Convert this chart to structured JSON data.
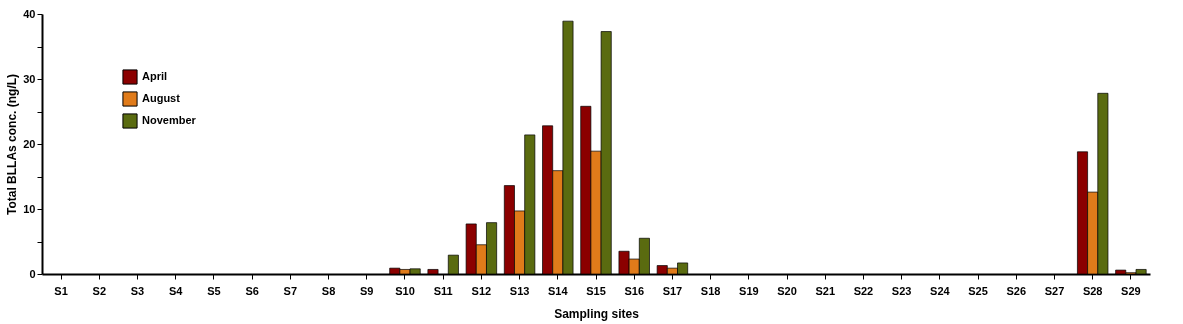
{
  "chart_data": {
    "type": "bar",
    "xlabel": "Sampling sites",
    "ylabel": "Total  BLLAs  conc.  (ng/L)",
    "categories": [
      "S1",
      "S2",
      "S3",
      "S4",
      "S5",
      "S6",
      "S7",
      "S8",
      "S9",
      "S10",
      "S11",
      "S12",
      "S13",
      "S14",
      "S15",
      "S16",
      "S17",
      "S18",
      "S19",
      "S20",
      "S21",
      "S22",
      "S23",
      "S24",
      "S25",
      "S26",
      "S27",
      "S28",
      "S29"
    ],
    "series": [
      {
        "name": "April",
        "color": "#8b0000",
        "values": [
          null,
          null,
          null,
          null,
          null,
          null,
          null,
          null,
          null,
          0.9,
          0.7,
          7.7,
          13.6,
          22.8,
          25.8,
          3.5,
          1.3,
          null,
          null,
          null,
          null,
          null,
          null,
          null,
          null,
          null,
          null,
          18.8,
          0.6
        ]
      },
      {
        "name": "August",
        "color": "#e07b1a",
        "values": [
          null,
          null,
          null,
          null,
          null,
          null,
          null,
          null,
          null,
          0.7,
          null,
          4.5,
          9.7,
          15.9,
          18.9,
          2.3,
          0.9,
          null,
          null,
          null,
          null,
          null,
          null,
          null,
          null,
          null,
          null,
          12.6,
          0.2
        ]
      },
      {
        "name": "November",
        "color": "#5a6b10",
        "values": [
          null,
          null,
          null,
          null,
          null,
          null,
          null,
          null,
          null,
          0.8,
          2.9,
          7.9,
          21.4,
          38.9,
          37.3,
          5.5,
          1.7,
          null,
          null,
          null,
          null,
          null,
          null,
          null,
          null,
          null,
          null,
          27.8,
          0.7
        ]
      }
    ],
    "ylim": [
      0,
      40
    ],
    "yticks": [
      0,
      {
        "value": 5,
        "label": null
      },
      10,
      {
        "value": 15,
        "label": null
      },
      20,
      {
        "value": 25,
        "label": null
      },
      30,
      {
        "value": 35,
        "label": null
      },
      40
    ],
    "legend": "top left",
    "grid": false
  }
}
